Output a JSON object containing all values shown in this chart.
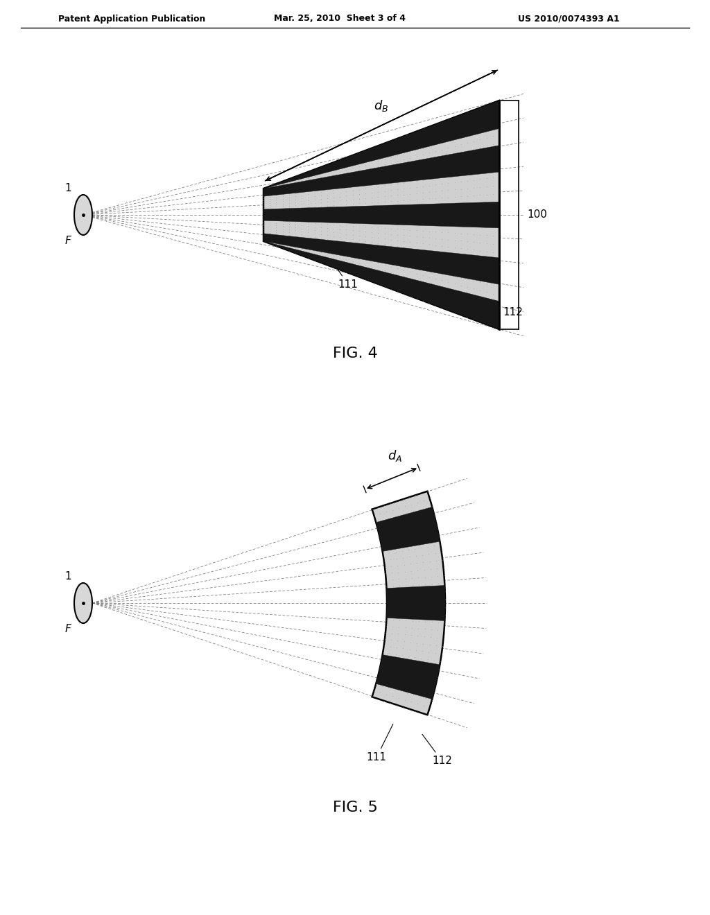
{
  "header_left": "Patent Application Publication",
  "header_mid": "Mar. 25, 2010  Sheet 3 of 4",
  "header_right": "US 2010/0074393 A1",
  "fig4_label": "FIG. 4",
  "fig5_label": "FIG. 5",
  "background_color": "#ffffff",
  "line_color": "#000000",
  "dark_stripe_color": "#1a1a1a",
  "light_fill_color": "#c8c8c8",
  "dashed_line_color": "#666666"
}
